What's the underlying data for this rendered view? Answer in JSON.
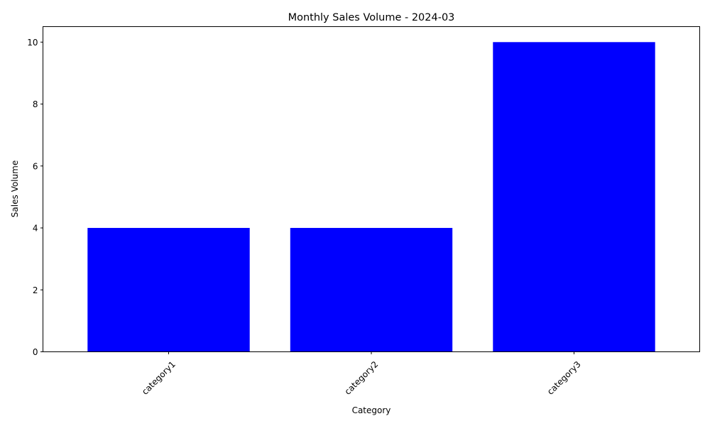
{
  "chart_data": {
    "type": "bar",
    "title": "Monthly Sales Volume - 2024-03",
    "xlabel": "Category",
    "ylabel": "Sales Volume",
    "categories": [
      "category1",
      "category2",
      "category3"
    ],
    "values": [
      4,
      4,
      10
    ],
    "ylim": [
      0,
      10.5
    ],
    "yticks": [
      "0",
      "2",
      "4",
      "6",
      "8",
      "10"
    ],
    "bar_color": "#0000ff",
    "grid": false,
    "legend": "none"
  }
}
